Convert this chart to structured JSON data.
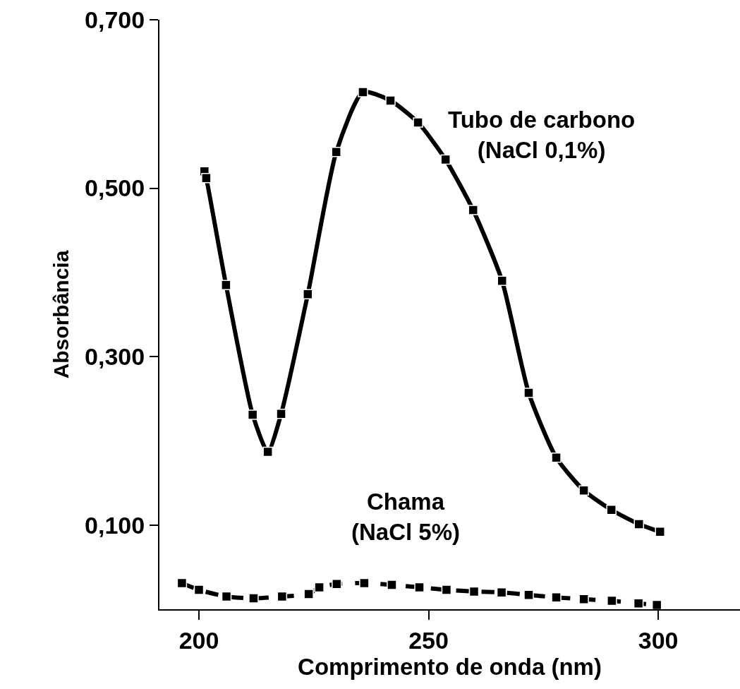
{
  "chart_data": {
    "type": "line",
    "xlabel": "Comprimento de onda (nm)",
    "ylabel": "Absorbância",
    "xlim": [
      191.4,
      317.8
    ],
    "ylim": [
      0,
      0.7
    ],
    "xticks": [
      200,
      250,
      300
    ],
    "yticks": [
      {
        "value": 0.1,
        "label": "0,100"
      },
      {
        "value": 0.3,
        "label": "0,300"
      },
      {
        "value": 0.5,
        "label": "0,500"
      },
      {
        "value": 0.7,
        "label": "0,700"
      }
    ],
    "legend": false,
    "marker": "square",
    "series": [
      {
        "name": "Tubo de carbono\n(NaCl 0,1%)",
        "color": "#000000",
        "line_style": "solid",
        "x": [
          201.2,
          201.6,
          205.9,
          211.7,
          215.0,
          217.9,
          223.7,
          229.9,
          235.7,
          241.7,
          247.7,
          253.7,
          259.7,
          266.0,
          271.8,
          277.8,
          283.8,
          289.8,
          295.8,
          300.4
        ],
        "values": [
          0.52,
          0.512,
          0.385,
          0.231,
          0.187,
          0.232,
          0.374,
          0.543,
          0.614,
          0.604,
          0.578,
          0.534,
          0.474,
          0.39,
          0.257,
          0.18,
          0.141,
          0.118,
          0.101,
          0.092
        ]
      },
      {
        "name": "Chama\n(NaCl 5%)",
        "color": "#000000",
        "line_style": "dashed",
        "x": [
          196.3,
          200.0,
          206.0,
          211.9,
          218.1,
          223.9,
          226.2,
          230.0,
          236.0,
          242.0,
          248.0,
          253.9,
          259.9,
          265.9,
          271.8,
          277.8,
          283.8,
          289.9,
          295.7,
          299.7
        ],
        "values": [
          0.031,
          0.023,
          0.015,
          0.013,
          0.015,
          0.018,
          0.026,
          0.03,
          0.031,
          0.029,
          0.026,
          0.023,
          0.021,
          0.02,
          0.017,
          0.014,
          0.012,
          0.01,
          0.007,
          0.005
        ]
      }
    ]
  }
}
